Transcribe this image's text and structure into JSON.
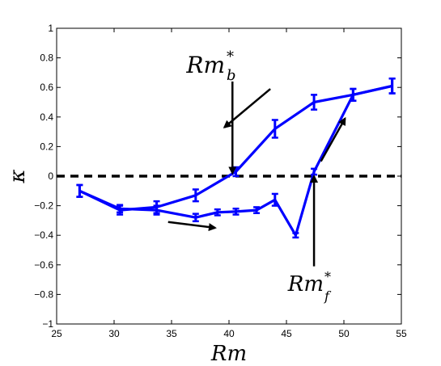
{
  "chart_data": {
    "type": "line",
    "xlabel": "Rm",
    "ylabel": "κ",
    "xlim": [
      25,
      55
    ],
    "ylim": [
      -1,
      1
    ],
    "xticks": [
      "25",
      "30",
      "35",
      "40",
      "45",
      "50",
      "55"
    ],
    "yticks": [
      "−1",
      "−0.8",
      "−0.6",
      "−0.4",
      "−0.2",
      "0",
      "0.2",
      "0.4",
      "0.6",
      "0.8",
      "1"
    ],
    "grid": false,
    "reference_line": {
      "y": 0,
      "style": "dashed",
      "color": "#000000"
    },
    "series_color": "#0000ff",
    "series": [
      {
        "points": [
          {
            "x": 27.0,
            "y": -0.1,
            "err": 0.04
          },
          {
            "x": 30.5,
            "y": -0.22,
            "err": 0.025
          },
          {
            "x": 33.7,
            "y": -0.23,
            "err": 0.03
          },
          {
            "x": 37.1,
            "y": -0.28,
            "err": 0.025
          },
          {
            "x": 39.0,
            "y": -0.245,
            "err": 0.02
          },
          {
            "x": 40.6,
            "y": -0.24,
            "err": 0.02
          },
          {
            "x": 42.4,
            "y": -0.23,
            "err": 0.02
          },
          {
            "x": 44.0,
            "y": -0.16,
            "err": 0.04
          },
          {
            "x": 45.8,
            "y": -0.4,
            "err": 0.015
          },
          {
            "x": 47.4,
            "y": 0.03,
            "err": 0.02
          },
          {
            "x": 50.8,
            "y": 0.55,
            "err": 0.04
          },
          {
            "x": 54.2,
            "y": 0.61,
            "err": 0.05
          }
        ]
      },
      {
        "points": [
          {
            "x": 54.2,
            "y": 0.61,
            "err": 0.05
          },
          {
            "x": 50.8,
            "y": 0.55,
            "err": 0.04
          },
          {
            "x": 47.4,
            "y": 0.5,
            "err": 0.05
          },
          {
            "x": 44.0,
            "y": 0.32,
            "err": 0.06
          },
          {
            "x": 40.6,
            "y": 0.03,
            "err": 0.03
          },
          {
            "x": 37.1,
            "y": -0.13,
            "err": 0.04
          },
          {
            "x": 33.7,
            "y": -0.21,
            "err": 0.04
          },
          {
            "x": 30.5,
            "y": -0.23,
            "err": 0.03
          },
          {
            "x": 27.0,
            "y": -0.1,
            "err": 0.04
          }
        ]
      }
    ],
    "annotations": [
      {
        "label": "Rm",
        "sup": "*",
        "sub": "b",
        "x": 41.6,
        "y": 0.76,
        "arrow_from": [
          40.3,
          0.64
        ],
        "arrow_to": [
          40.3,
          0.02
        ]
      },
      {
        "label": "Rm",
        "sup": "*",
        "sub": "f",
        "x": 47.2,
        "y": -0.73,
        "arrow_from": [
          47.4,
          -0.61
        ],
        "arrow_to": [
          47.4,
          0.0
        ]
      }
    ],
    "direction_arrows": [
      {
        "from": [
          43.6,
          0.59
        ],
        "to": [
          39.6,
          0.33
        ]
      },
      {
        "from": [
          48.0,
          0.1
        ],
        "to": [
          50.1,
          0.39
        ]
      },
      {
        "from": [
          34.7,
          -0.31
        ],
        "to": [
          38.8,
          -0.35
        ]
      }
    ]
  }
}
